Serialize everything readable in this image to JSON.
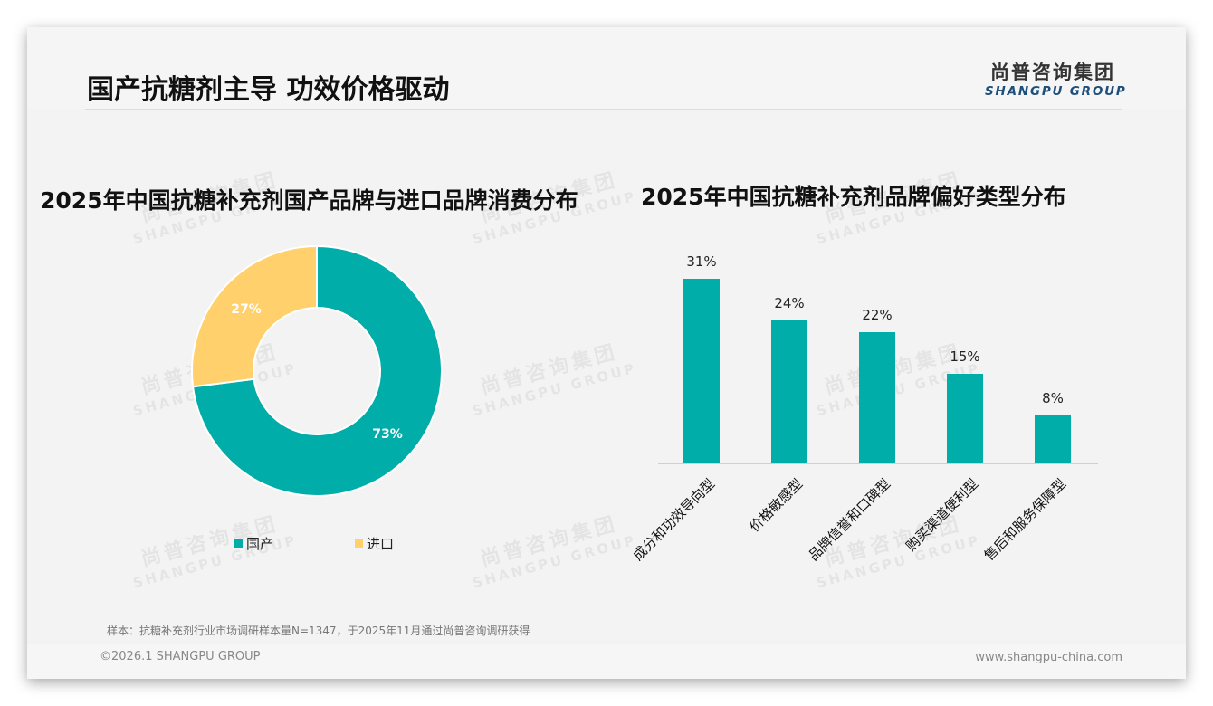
{
  "header": {
    "title": "国产抗糖剂主导 功效价格驱动",
    "logo_cn": "尚普咨询集团",
    "logo_en": "SHANGPU GROUP"
  },
  "watermark": {
    "cn": "尚普咨询集团",
    "en": "SHANGPU GROUP"
  },
  "colors": {
    "teal": "#00ADA9",
    "yellow": "#FFD06B",
    "background": "#F3F3F3",
    "logo_blue": "#1D4F7A"
  },
  "donut_chart": {
    "title": "2025年中国抗糖补充剂国产品牌与进口品牌消费分布",
    "slices": [
      {
        "label": "国产",
        "value": 73,
        "display": "73%",
        "color": "#00ADA9"
      },
      {
        "label": "进口",
        "value": 27,
        "display": "27%",
        "color": "#FFD06B"
      }
    ],
    "legend": [
      {
        "label": "国产",
        "color": "#00ADA9"
      },
      {
        "label": "进口",
        "color": "#FFD06B"
      }
    ]
  },
  "bar_chart": {
    "title": "2025年中国抗糖补充剂品牌偏好类型分布",
    "bars": [
      {
        "label": "成分和功效导向型",
        "value": 31,
        "display": "31%"
      },
      {
        "label": "价格敏感型",
        "value": 24,
        "display": "24%"
      },
      {
        "label": "品牌信誉和口碑型",
        "value": 22,
        "display": "22%"
      },
      {
        "label": "购买渠道便利型",
        "value": 15,
        "display": "15%"
      },
      {
        "label": "售后和服务保障型",
        "value": 8,
        "display": "8%"
      }
    ]
  },
  "chart_data": [
    {
      "type": "pie",
      "subtype": "donut",
      "title": "2025年中国抗糖补充剂国产品牌与进口品牌消费分布",
      "categories": [
        "国产",
        "进口"
      ],
      "values": [
        73,
        27
      ],
      "unit": "%",
      "legend_position": "bottom"
    },
    {
      "type": "bar",
      "title": "2025年中国抗糖补充剂品牌偏好类型分布",
      "categories": [
        "成分和功效导向型",
        "价格敏感型",
        "品牌信誉和口碑型",
        "购买渠道便利型",
        "售后和服务保障型"
      ],
      "values": [
        31,
        24,
        22,
        15,
        8
      ],
      "unit": "%",
      "xlabel": "",
      "ylabel": "",
      "ylim": [
        0,
        31
      ],
      "grid": false,
      "data_labels": true,
      "legend_position": "none"
    }
  ],
  "footer": {
    "footnote": "样本：抗糖补充剂行业市场调研样本量N=1347，于2025年11月通过尚普咨询调研获得",
    "copyright": "©2026.1 SHANGPU GROUP",
    "website": "www.shangpu-china.com"
  }
}
